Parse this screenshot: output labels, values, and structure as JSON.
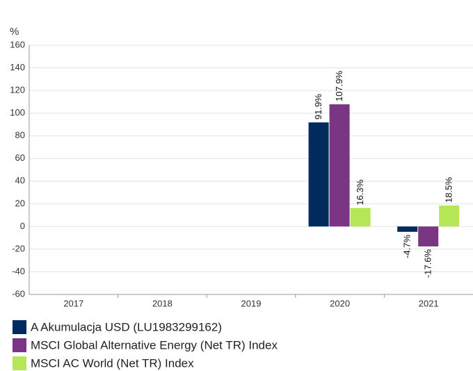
{
  "chart_data": {
    "type": "bar",
    "y_label": "%",
    "categories": [
      "2017",
      "2018",
      "2019",
      "2020",
      "2021"
    ],
    "series": [
      {
        "name": "A Akumulacja USD (LU1983299162)",
        "color": "#002b5c",
        "values": [
          null,
          null,
          null,
          91.9,
          -4.7
        ],
        "value_labels": [
          null,
          null,
          null,
          "91.9%",
          "-4.7%"
        ]
      },
      {
        "name": "MSCI Global Alternative Energy (Net TR) Index",
        "color": "#7b3585",
        "values": [
          null,
          null,
          null,
          107.9,
          -17.6
        ],
        "value_labels": [
          null,
          null,
          null,
          "107.9%",
          "-17.6%"
        ]
      },
      {
        "name": "MSCI AC World (Net TR) Index",
        "color": "#b5e655",
        "values": [
          null,
          null,
          null,
          16.3,
          18.5
        ],
        "value_labels": [
          null,
          null,
          null,
          "16.3%",
          "18.5%"
        ]
      }
    ],
    "ylim": [
      -60,
      160
    ],
    "yticks": [
      -60,
      -40,
      -20,
      0,
      20,
      40,
      60,
      80,
      100,
      120,
      140,
      160
    ],
    "grid": true
  }
}
